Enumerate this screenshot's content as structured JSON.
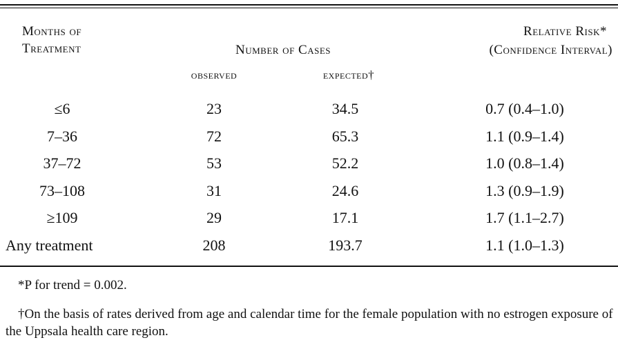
{
  "table": {
    "header": {
      "months": [
        "Months of",
        "Treatment"
      ],
      "cases": "Number of Cases",
      "observed": "observed",
      "expected": "expected†",
      "risk": [
        "Relative Risk*",
        "(Confidence Interval)"
      ]
    },
    "rows": [
      [
        "≤6",
        "23",
        "34.5",
        "0.7 (0.4–1.0)"
      ],
      [
        "7–36",
        "72",
        "65.3",
        "1.1 (0.9–1.4)"
      ],
      [
        "37–72",
        "53",
        "52.2",
        "1.0 (0.8–1.4)"
      ],
      [
        "73–108",
        "31",
        "24.6",
        "1.3 (0.9–1.9)"
      ],
      [
        "≥109",
        "29",
        "17.1",
        "1.7 (1.1–2.7)"
      ],
      [
        "Any treatment",
        "208",
        "193.7",
        "1.1 (1.0–1.3)"
      ]
    ]
  },
  "footnotes": [
    "*P for trend = 0.002.",
    "†On the basis of rates derived from age and calendar time for the female population with no estrogen exposure of the Uppsala health care region."
  ]
}
